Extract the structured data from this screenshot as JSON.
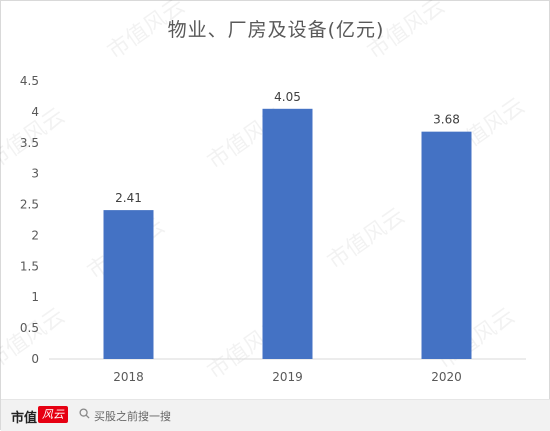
{
  "chart_data": {
    "type": "bar",
    "title": "物业、厂房及设备(亿元)",
    "categories": [
      "2018",
      "2019",
      "2020"
    ],
    "values": [
      2.41,
      4.05,
      3.68
    ],
    "value_labels": [
      "2.41",
      "4.05",
      "3.68"
    ],
    "ylim": [
      0,
      4.5
    ],
    "yticks": [
      "0",
      "0.5",
      "1",
      "1.5",
      "2",
      "2.5",
      "3",
      "3.5",
      "4",
      "4.5"
    ],
    "xlabel": "",
    "ylabel": "",
    "bar_color": "#4472c4",
    "grid": false
  },
  "watermark": "市值风云",
  "footer": {
    "logo_text": "市值",
    "logo_badge": "风云",
    "search_icon": "search-icon",
    "search_text": "买股之前搜一搜"
  }
}
